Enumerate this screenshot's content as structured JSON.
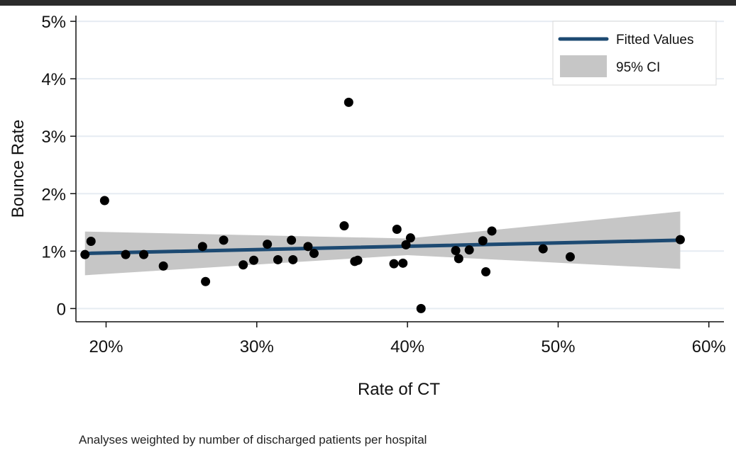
{
  "chart_data": {
    "type": "scatter",
    "title": "",
    "xlabel": "Rate of CT",
    "ylabel": "Bounce Rate",
    "xlim": [
      18,
      61
    ],
    "ylim": [
      -0.23,
      5.1
    ],
    "xticks": [
      20,
      30,
      40,
      50,
      60
    ],
    "xtick_labels": [
      "20%",
      "30%",
      "40%",
      "50%",
      "60%"
    ],
    "yticks": [
      0,
      1,
      2,
      3,
      4,
      5
    ],
    "ytick_labels": [
      "0",
      "1%",
      "2%",
      "3%",
      "4%",
      "5%"
    ],
    "grid": true,
    "legend_position": "top-right",
    "legend": [
      {
        "name": "Fitted Values",
        "kind": "line"
      },
      {
        "name": "95% CI",
        "kind": "band"
      }
    ],
    "series": [
      {
        "name": "",
        "kind": "points",
        "x": [
          18.6,
          19.0,
          19.9,
          21.3,
          22.5,
          23.8,
          26.4,
          26.6,
          27.8,
          29.1,
          29.8,
          30.7,
          31.4,
          32.3,
          32.4,
          33.4,
          33.8,
          35.8,
          36.1,
          36.5,
          36.7,
          39.1,
          39.3,
          39.7,
          39.9,
          40.2,
          40.9,
          43.2,
          43.4,
          44.1,
          45.0,
          45.2,
          45.6,
          49.0,
          50.8,
          58.1
        ],
        "y": [
          0.94,
          1.17,
          1.88,
          0.94,
          0.94,
          0.74,
          1.08,
          0.47,
          1.19,
          0.76,
          0.84,
          1.12,
          0.85,
          1.19,
          0.85,
          1.08,
          0.96,
          1.44,
          3.59,
          0.82,
          0.84,
          0.78,
          1.38,
          0.79,
          1.11,
          1.23,
          0.0,
          1.01,
          0.87,
          1.02,
          1.18,
          0.64,
          1.35,
          1.04,
          0.9,
          1.2
        ]
      },
      {
        "name": "Fitted Values",
        "kind": "line",
        "x": [
          18.6,
          58.1
        ],
        "y": [
          0.96,
          1.19
        ]
      },
      {
        "name": "95% CI",
        "kind": "band",
        "x": [
          18.6,
          40.0,
          58.1
        ],
        "upper": [
          1.34,
          1.22,
          1.69
        ],
        "lower": [
          0.58,
          0.93,
          0.69
        ]
      }
    ],
    "colors": {
      "line": "#1d4a72",
      "band": "#c6c6c6",
      "points": "#000000",
      "grid": "#e6ecf2"
    }
  },
  "footnote": "Analyses weighted by number of discharged patients per hospital"
}
